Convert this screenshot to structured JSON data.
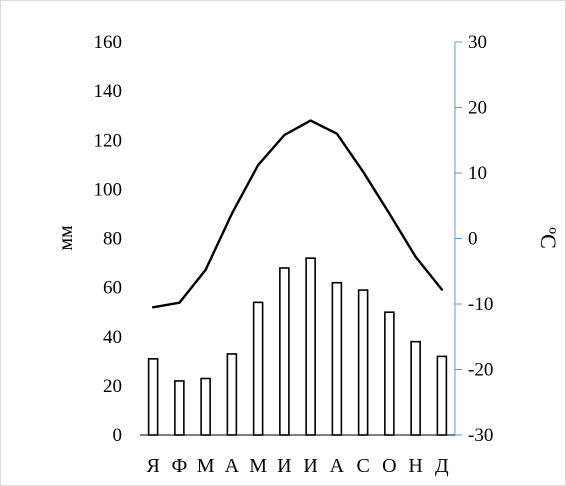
{
  "chart_data": {
    "type": "bar",
    "title": "",
    "categories": [
      "Я",
      "Ф",
      "М",
      "А",
      "М",
      "И",
      "И",
      "А",
      "С",
      "О",
      "Н",
      "Д"
    ],
    "series": [
      {
        "type": "bar",
        "axis": "left",
        "values": [
          31,
          22,
          23,
          33,
          54,
          68,
          72,
          62,
          59,
          50,
          38,
          32
        ]
      },
      {
        "type": "line",
        "axis": "right",
        "values": [
          -10.5,
          -9.8,
          -4.8,
          3.8,
          11.2,
          15.8,
          18.0,
          16.0,
          10.2,
          3.8,
          -2.8,
          -7.8
        ]
      }
    ],
    "y_left": {
      "label": "мм",
      "min": 0,
      "max": 160,
      "ticks": [
        0,
        20,
        40,
        60,
        80,
        100,
        120,
        140,
        160
      ]
    },
    "y_right": {
      "label": "ºС",
      "min": -30,
      "max": 30,
      "ticks": [
        -30,
        -20,
        -10,
        0,
        10,
        20,
        30
      ]
    },
    "grid": false,
    "legend": "none",
    "colors": {
      "bar_fill": "#ffffff",
      "bar_stroke": "#000000",
      "line": "#000000",
      "right_axis": "#5b9bd5"
    }
  }
}
